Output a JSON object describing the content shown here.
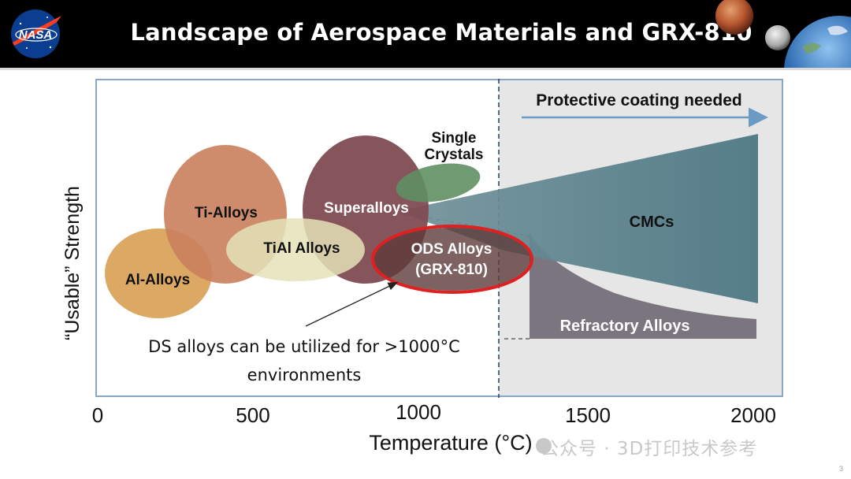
{
  "header": {
    "title": "Landscape of Aerospace Materials and GRX-810",
    "logo_text": "NASA"
  },
  "chart": {
    "ylabel": "“Usable” Strength",
    "xlabel": "Temperature (°C)",
    "x_ticks": [
      "0",
      "500",
      "1000",
      "1500",
      "2000"
    ],
    "regions": {
      "al": "Al-Alloys",
      "ti": "Ti-Alloys",
      "tial": "TiAl Alloys",
      "super": "Superalloys",
      "single_1": "Single",
      "single_2": "Crystals",
      "ods_1": "ODS Alloys",
      "ods_2": "(GRX-810)",
      "cmc": "CMCs",
      "refractory": "Refractory Alloys"
    },
    "coating": "Protective coating needed",
    "annotation_1": "DS alloys can be utilized for >1000°C",
    "annotation_2": "environments"
  },
  "colors": {
    "al": "#d8a257",
    "ti": "#c9805c",
    "tial": "#e4e2b9",
    "super": "#7f4b52",
    "single": "#5f8f63",
    "ods": "#5e3b3a",
    "ods_ring": "#e02020",
    "cmc": "#5f8690",
    "refractory": "#7b7580",
    "coating_arrow": "#6b9ac4",
    "frame": "#8aa6c7"
  },
  "watermark": "公众号 · 3D打印技术参考",
  "page_number": "3"
}
